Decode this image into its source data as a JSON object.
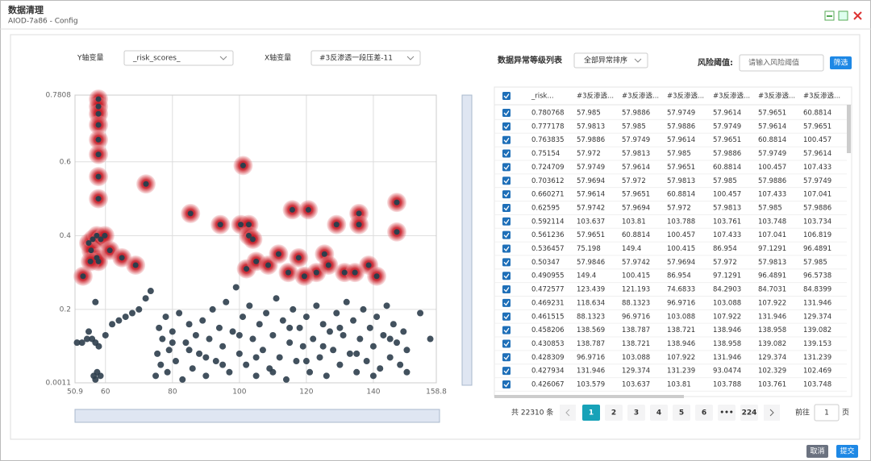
{
  "window": {
    "title": "数据清理",
    "subtitle": "AIOD-7a86 - Config"
  },
  "controls": {
    "y_label": "Y轴变量",
    "y_value": "_risk_scores_",
    "x_label": "X轴变量",
    "x_value": "#3反渗透一段压差-11"
  },
  "chart_data": {
    "type": "scatter",
    "xlim": [
      50.9,
      158.8
    ],
    "xticks": [
      50.9,
      60,
      80,
      100,
      120,
      140,
      158.8
    ],
    "ylim": [
      0.0011,
      0.7808
    ],
    "yticks": [
      0.0011,
      0.2,
      0.4,
      0.6,
      0.7808
    ],
    "grid": true,
    "points": {
      "color": "#2e3e4c",
      "x": [
        51.5,
        53,
        54.5,
        56,
        57,
        58,
        57.5,
        58.5,
        57,
        56.5,
        60,
        62,
        64,
        66,
        68,
        70,
        72,
        73.5,
        55,
        57,
        75,
        75.5,
        76,
        76.5,
        77,
        78,
        78.5,
        79,
        80,
        81,
        82,
        83,
        84,
        85,
        86,
        87,
        88,
        89,
        90,
        91,
        92,
        93,
        94,
        95,
        96,
        97,
        98,
        99,
        100,
        101,
        102,
        103,
        104,
        105,
        106,
        107,
        108,
        109,
        110,
        111,
        112,
        113,
        114,
        115,
        116,
        117,
        118,
        119,
        120,
        121,
        122,
        123,
        124,
        125,
        126,
        127,
        128,
        129,
        130,
        131,
        132,
        133,
        134,
        135,
        136,
        137,
        138,
        139,
        140,
        141,
        142,
        143,
        144,
        145,
        146,
        147,
        148,
        149,
        150,
        154,
        85,
        95,
        105,
        115,
        125,
        135,
        145,
        110,
        120,
        130,
        100,
        90,
        140,
        80,
        150,
        157
      ],
      "y": [
        0.11,
        0.11,
        0.12,
        0.12,
        0.11,
        0.1,
        0.03,
        0.02,
        0.01,
        0.02,
        0.13,
        0.16,
        0.17,
        0.18,
        0.19,
        0.2,
        0.23,
        0.25,
        0.14,
        0.22,
        0.02,
        0.08,
        0.15,
        0.05,
        0.12,
        0.18,
        0.03,
        0.09,
        0.14,
        0.06,
        0.19,
        0.01,
        0.11,
        0.16,
        0.04,
        0.13,
        0.08,
        0.17,
        0.02,
        0.12,
        0.2,
        0.06,
        0.15,
        0.1,
        0.22,
        0.03,
        0.14,
        0.26,
        0.08,
        0.18,
        0.05,
        0.21,
        0.12,
        0.02,
        0.16,
        0.09,
        0.19,
        0.04,
        0.13,
        0.23,
        0.07,
        0.17,
        0.01,
        0.11,
        0.2,
        0.06,
        0.15,
        0.1,
        0.18,
        0.03,
        0.12,
        0.21,
        0.07,
        0.16,
        0.02,
        0.14,
        0.09,
        0.19,
        0.05,
        0.13,
        0.22,
        0.08,
        0.17,
        0.03,
        0.12,
        0.2,
        0.06,
        0.15,
        0.1,
        0.18,
        0.04,
        0.13,
        0.21,
        0.07,
        0.16,
        0.11,
        0.05,
        0.14,
        0.09,
        0.19,
        0.09,
        0.05,
        0.07,
        0.15,
        0.1,
        0.08,
        0.12,
        0.03,
        0.06,
        0.15,
        0.13,
        0.07,
        0.02,
        0.11,
        0.03,
        0.12
      ]
    },
    "outliers": {
      "color": "#c8202a",
      "x": [
        57.9,
        57.9,
        57.9,
        57.9,
        57.9,
        57.9,
        57.9,
        57.9,
        53.3,
        55,
        56.2,
        57.4,
        58.6,
        59.8,
        55.7,
        57.4,
        57.9,
        55.5,
        61.3,
        64.9,
        69,
        72.1,
        85.4,
        94.3,
        101.1,
        100.4,
        102.8,
        102.8,
        104,
        102.1,
        105,
        108.6,
        111.7,
        114.6,
        117.7,
        115.8,
        120.6,
        123,
        125.4,
        129,
        131.4,
        135.7,
        135.7,
        138.6,
        141,
        147,
        147,
        134.5,
        126.6,
        119.4
      ],
      "y": [
        0.77,
        0.75,
        0.73,
        0.7,
        0.66,
        0.62,
        0.56,
        0.5,
        0.29,
        0.38,
        0.39,
        0.4,
        0.39,
        0.4,
        0.36,
        0.34,
        0.33,
        0.33,
        0.36,
        0.34,
        0.32,
        0.54,
        0.46,
        0.43,
        0.59,
        0.43,
        0.43,
        0.4,
        0.39,
        0.31,
        0.33,
        0.32,
        0.35,
        0.3,
        0.34,
        0.47,
        0.47,
        0.3,
        0.35,
        0.43,
        0.3,
        0.46,
        0.43,
        0.32,
        0.29,
        0.49,
        0.41,
        0.3,
        0.32,
        0.29
      ]
    }
  },
  "panel": {
    "title": "数据异常等级列表",
    "sort": "全部异常排序",
    "threshold_label": "风险阈值:",
    "threshold_placeholder": "请输入风险阈值",
    "filter": "筛选"
  },
  "table": {
    "header": [
      "_risk...",
      "#3反渗透...",
      "#3反渗透...",
      "#3反渗透...",
      "#3反渗透...",
      "#3反渗透...",
      "#3反渗透..."
    ],
    "rows": [
      [
        0.780768,
        57.985,
        57.9886,
        57.9749,
        57.9614,
        57.9651,
        60.8814
      ],
      [
        0.777178,
        57.9813,
        57.985,
        57.9886,
        57.9749,
        57.9614,
        57.9651
      ],
      [
        0.763835,
        57.9886,
        57.9749,
        57.9614,
        57.9651,
        60.8814,
        100.457
      ],
      [
        0.75154,
        57.972,
        57.9813,
        57.985,
        57.9886,
        57.9749,
        57.9614
      ],
      [
        0.724709,
        57.9749,
        57.9614,
        57.9651,
        60.8814,
        100.457,
        107.433
      ],
      [
        0.703612,
        57.9694,
        57.972,
        57.9813,
        57.985,
        57.9886,
        57.9749
      ],
      [
        0.660271,
        57.9614,
        57.9651,
        60.8814,
        100.457,
        107.433,
        107.041
      ],
      [
        0.62595,
        57.9742,
        57.9694,
        57.972,
        57.9813,
        57.985,
        57.9886
      ],
      [
        0.592114,
        103.637,
        103.81,
        103.788,
        103.761,
        103.748,
        103.734
      ],
      [
        0.561236,
        57.9651,
        60.8814,
        100.457,
        107.433,
        107.041,
        106.819
      ],
      [
        0.536457,
        75.198,
        149.4,
        100.415,
        86.954,
        97.1291,
        96.4891
      ],
      [
        0.50347,
        57.9846,
        57.9742,
        57.9694,
        57.972,
        57.9813,
        57.985
      ],
      [
        0.490955,
        149.4,
        100.415,
        86.954,
        97.1291,
        96.4891,
        96.5738
      ],
      [
        0.472577,
        123.439,
        121.193,
        74.6833,
        84.2903,
        84.7031,
        84.8399
      ],
      [
        0.469231,
        118.634,
        88.1323,
        96.9716,
        103.088,
        107.922,
        131.946
      ],
      [
        0.461515,
        88.1323,
        96.9716,
        103.088,
        107.922,
        131.946,
        129.374
      ],
      [
        0.458206,
        138.569,
        138.787,
        138.721,
        138.946,
        138.958,
        139.082
      ],
      [
        0.430853,
        138.787,
        138.721,
        138.946,
        138.958,
        139.082,
        139.153
      ],
      [
        0.428309,
        96.9716,
        103.088,
        107.922,
        131.946,
        129.374,
        131.239
      ],
      [
        0.427934,
        131.946,
        129.374,
        131.239,
        93.0474,
        102.329,
        102.469
      ],
      [
        0.426067,
        103.579,
        103.637,
        103.81,
        103.788,
        103.761,
        103.748
      ]
    ]
  },
  "pagination": {
    "total": "共 22310 条",
    "pages": [
      "1",
      "2",
      "3",
      "4",
      "5",
      "6",
      "•••",
      "224"
    ],
    "goto": "前往",
    "page_input": "1",
    "page_unit": "页"
  },
  "buttons": {
    "cancel": "取消",
    "submit": "提交"
  }
}
